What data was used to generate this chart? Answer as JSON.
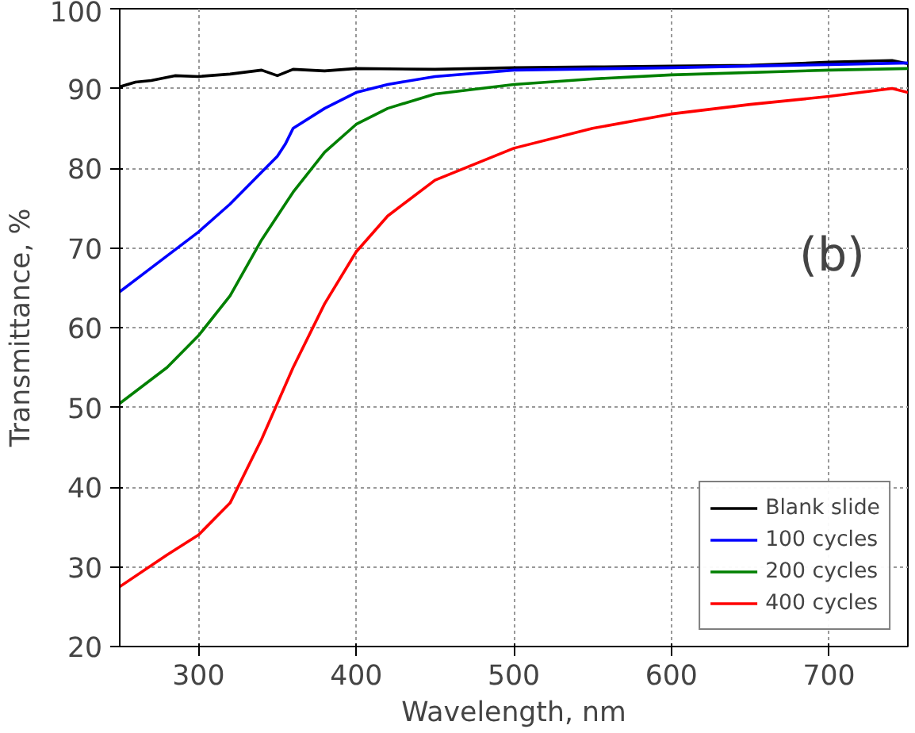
{
  "chart_data": {
    "type": "line",
    "xlabel": "Wavelength, nm",
    "ylabel": "Transmittance, %",
    "xlim": [
      250,
      750
    ],
    "ylim": [
      20,
      100
    ],
    "xticks": [
      300,
      400,
      500,
      600,
      700
    ],
    "yticks": [
      20,
      30,
      40,
      50,
      60,
      70,
      80,
      90,
      100
    ],
    "grid": true,
    "legend": "bottom right",
    "line_style": "solid",
    "marker": "none",
    "annotations": [
      "(b)"
    ],
    "series": [
      {
        "name": "Blank slide",
        "color": "#000000",
        "x": [
          250,
          260,
          270,
          285,
          300,
          320,
          340,
          350,
          360,
          380,
          400,
          450,
          500,
          550,
          600,
          650,
          700,
          740,
          750
        ],
        "values": [
          90.2,
          90.8,
          91.0,
          91.6,
          91.5,
          91.8,
          92.3,
          91.6,
          92.4,
          92.2,
          92.5,
          92.4,
          92.6,
          92.7,
          92.8,
          92.9,
          93.3,
          93.5,
          93.1
        ]
      },
      {
        "name": "100 cycles",
        "color": "#0000ff",
        "x": [
          250,
          270,
          300,
          320,
          340,
          350,
          355,
          360,
          380,
          400,
          420,
          450,
          500,
          600,
          700,
          750
        ],
        "values": [
          64.5,
          67.5,
          72.0,
          75.5,
          79.5,
          81.5,
          83.0,
          85.0,
          87.5,
          89.5,
          90.5,
          91.5,
          92.3,
          92.6,
          93.0,
          93.2
        ]
      },
      {
        "name": "200 cycles",
        "color": "#008000",
        "x": [
          250,
          280,
          300,
          320,
          340,
          360,
          380,
          400,
          420,
          450,
          500,
          550,
          600,
          700,
          750
        ],
        "values": [
          50.5,
          55.0,
          59.0,
          64.0,
          71.0,
          77.0,
          82.0,
          85.5,
          87.5,
          89.3,
          90.5,
          91.2,
          91.7,
          92.3,
          92.5
        ]
      },
      {
        "name": "400 cycles",
        "color": "#ff0000",
        "x": [
          250,
          280,
          300,
          320,
          340,
          360,
          380,
          400,
          420,
          450,
          500,
          550,
          600,
          650,
          700,
          740,
          750
        ],
        "values": [
          27.5,
          31.5,
          34.0,
          38.0,
          46.0,
          55.0,
          63.0,
          69.5,
          74.0,
          78.5,
          82.5,
          85.0,
          86.8,
          88.0,
          89.0,
          90.0,
          89.5
        ]
      }
    ]
  }
}
